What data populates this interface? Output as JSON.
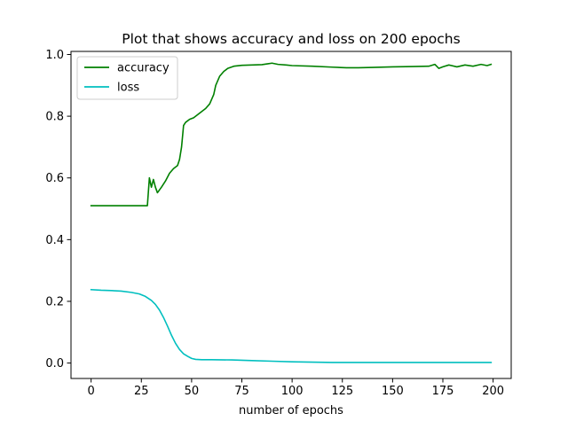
{
  "chart_data": {
    "type": "line",
    "title": "Plot that shows accuracy and loss on 200 epochs",
    "xlabel": "number of epochs",
    "ylabel": "",
    "xlim": [
      -10,
      209
    ],
    "ylim": [
      -0.05,
      1.01
    ],
    "xticks": [
      0,
      25,
      50,
      75,
      100,
      125,
      150,
      175,
      200
    ],
    "xtick_labels": [
      "0",
      "25",
      "50",
      "75",
      "100",
      "125",
      "150",
      "175",
      "200"
    ],
    "yticks": [
      0.0,
      0.2,
      0.4,
      0.6,
      0.8,
      1.0
    ],
    "ytick_labels": [
      "0.0",
      "0.2",
      "0.4",
      "0.6",
      "0.8",
      "1.0"
    ],
    "grid": false,
    "legend": "top-left",
    "series": [
      {
        "name": "accuracy",
        "color": "#008000",
        "points": [
          [
            0,
            0.51
          ],
          [
            10,
            0.51
          ],
          [
            20,
            0.51
          ],
          [
            28,
            0.51
          ],
          [
            29,
            0.6
          ],
          [
            30,
            0.57
          ],
          [
            31,
            0.595
          ],
          [
            32,
            0.57
          ],
          [
            33,
            0.552
          ],
          [
            35,
            0.57
          ],
          [
            37,
            0.59
          ],
          [
            39,
            0.615
          ],
          [
            41,
            0.63
          ],
          [
            43,
            0.64
          ],
          [
            44,
            0.66
          ],
          [
            45,
            0.7
          ],
          [
            46,
            0.77
          ],
          [
            47,
            0.78
          ],
          [
            49,
            0.79
          ],
          [
            51,
            0.795
          ],
          [
            53,
            0.805
          ],
          [
            55,
            0.815
          ],
          [
            57,
            0.825
          ],
          [
            59,
            0.84
          ],
          [
            61,
            0.87
          ],
          [
            62,
            0.9
          ],
          [
            64,
            0.93
          ],
          [
            66,
            0.945
          ],
          [
            68,
            0.955
          ],
          [
            71,
            0.962
          ],
          [
            75,
            0.965
          ],
          [
            80,
            0.966
          ],
          [
            85,
            0.967
          ],
          [
            88,
            0.97
          ],
          [
            90,
            0.972
          ],
          [
            93,
            0.968
          ],
          [
            97,
            0.966
          ],
          [
            100,
            0.964
          ],
          [
            110,
            0.962
          ],
          [
            120,
            0.959
          ],
          [
            127,
            0.957
          ],
          [
            133,
            0.957
          ],
          [
            140,
            0.958
          ],
          [
            150,
            0.96
          ],
          [
            160,
            0.961
          ],
          [
            168,
            0.962
          ],
          [
            171,
            0.968
          ],
          [
            173,
            0.955
          ],
          [
            175,
            0.96
          ],
          [
            178,
            0.966
          ],
          [
            182,
            0.96
          ],
          [
            186,
            0.966
          ],
          [
            190,
            0.962
          ],
          [
            194,
            0.968
          ],
          [
            197,
            0.964
          ],
          [
            199,
            0.968
          ]
        ]
      },
      {
        "name": "loss",
        "color": "#00bfbf",
        "points": [
          [
            0,
            0.238
          ],
          [
            5,
            0.236
          ],
          [
            10,
            0.235
          ],
          [
            15,
            0.233
          ],
          [
            20,
            0.229
          ],
          [
            24,
            0.224
          ],
          [
            27,
            0.216
          ],
          [
            30,
            0.203
          ],
          [
            32,
            0.19
          ],
          [
            34,
            0.172
          ],
          [
            36,
            0.148
          ],
          [
            38,
            0.12
          ],
          [
            40,
            0.09
          ],
          [
            42,
            0.064
          ],
          [
            44,
            0.044
          ],
          [
            46,
            0.03
          ],
          [
            48,
            0.022
          ],
          [
            50,
            0.015
          ],
          [
            52,
            0.012
          ],
          [
            55,
            0.011
          ],
          [
            60,
            0.011
          ],
          [
            70,
            0.01
          ],
          [
            80,
            0.008
          ],
          [
            90,
            0.006
          ],
          [
            100,
            0.004
          ],
          [
            110,
            0.003
          ],
          [
            120,
            0.002
          ],
          [
            140,
            0.002
          ],
          [
            160,
            0.002
          ],
          [
            180,
            0.002
          ],
          [
            199,
            0.002
          ]
        ]
      }
    ]
  }
}
